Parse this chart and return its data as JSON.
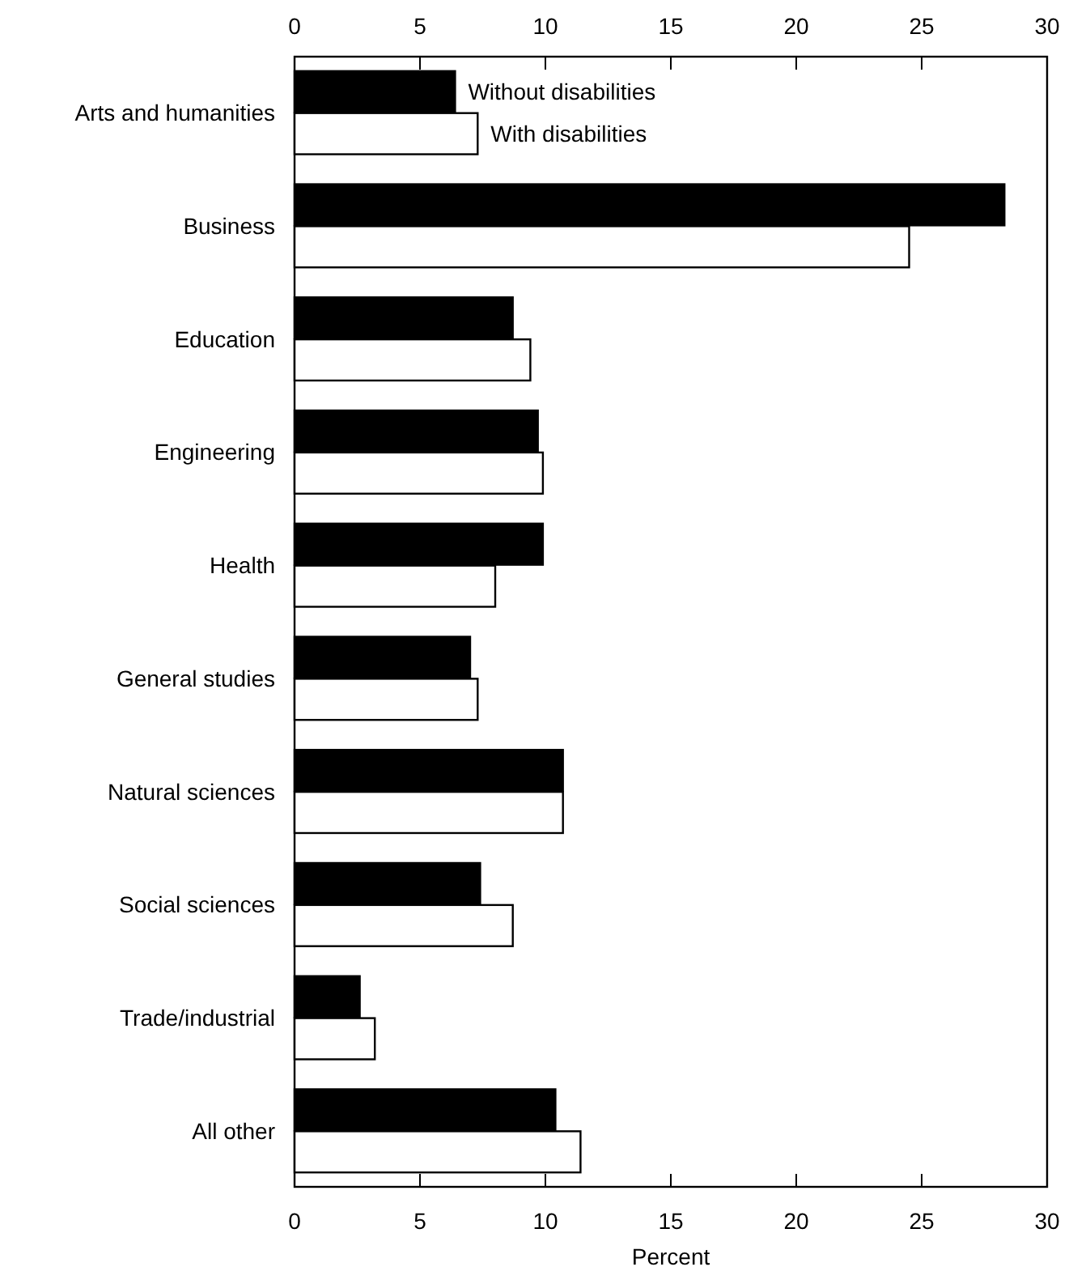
{
  "chart_data": {
    "type": "bar",
    "orientation": "horizontal",
    "xlabel": "Percent",
    "categories": [
      "Arts and humanities",
      "Business",
      "Education",
      "Engineering",
      "Health",
      "General studies",
      "Natural sciences",
      "Social sciences",
      "Trade/industrial",
      "All other"
    ],
    "series": [
      {
        "name": "Without disabilities",
        "color": "#000000",
        "values": [
          6.4,
          28.3,
          8.7,
          9.7,
          9.9,
          7.0,
          10.7,
          7.4,
          2.6,
          10.4
        ]
      },
      {
        "name": "With disabilities",
        "color": "#ffffff",
        "values": [
          7.3,
          24.5,
          9.4,
          9.9,
          8.0,
          7.3,
          10.7,
          8.7,
          3.2,
          11.4
        ]
      }
    ],
    "xlim": [
      0,
      30
    ],
    "xticks": [
      0,
      5,
      10,
      15,
      20,
      25,
      30
    ],
    "x2lim": [
      0,
      30
    ],
    "x2ticks": [
      0,
      5,
      10,
      15,
      20,
      25,
      30
    ],
    "grid": false
  }
}
